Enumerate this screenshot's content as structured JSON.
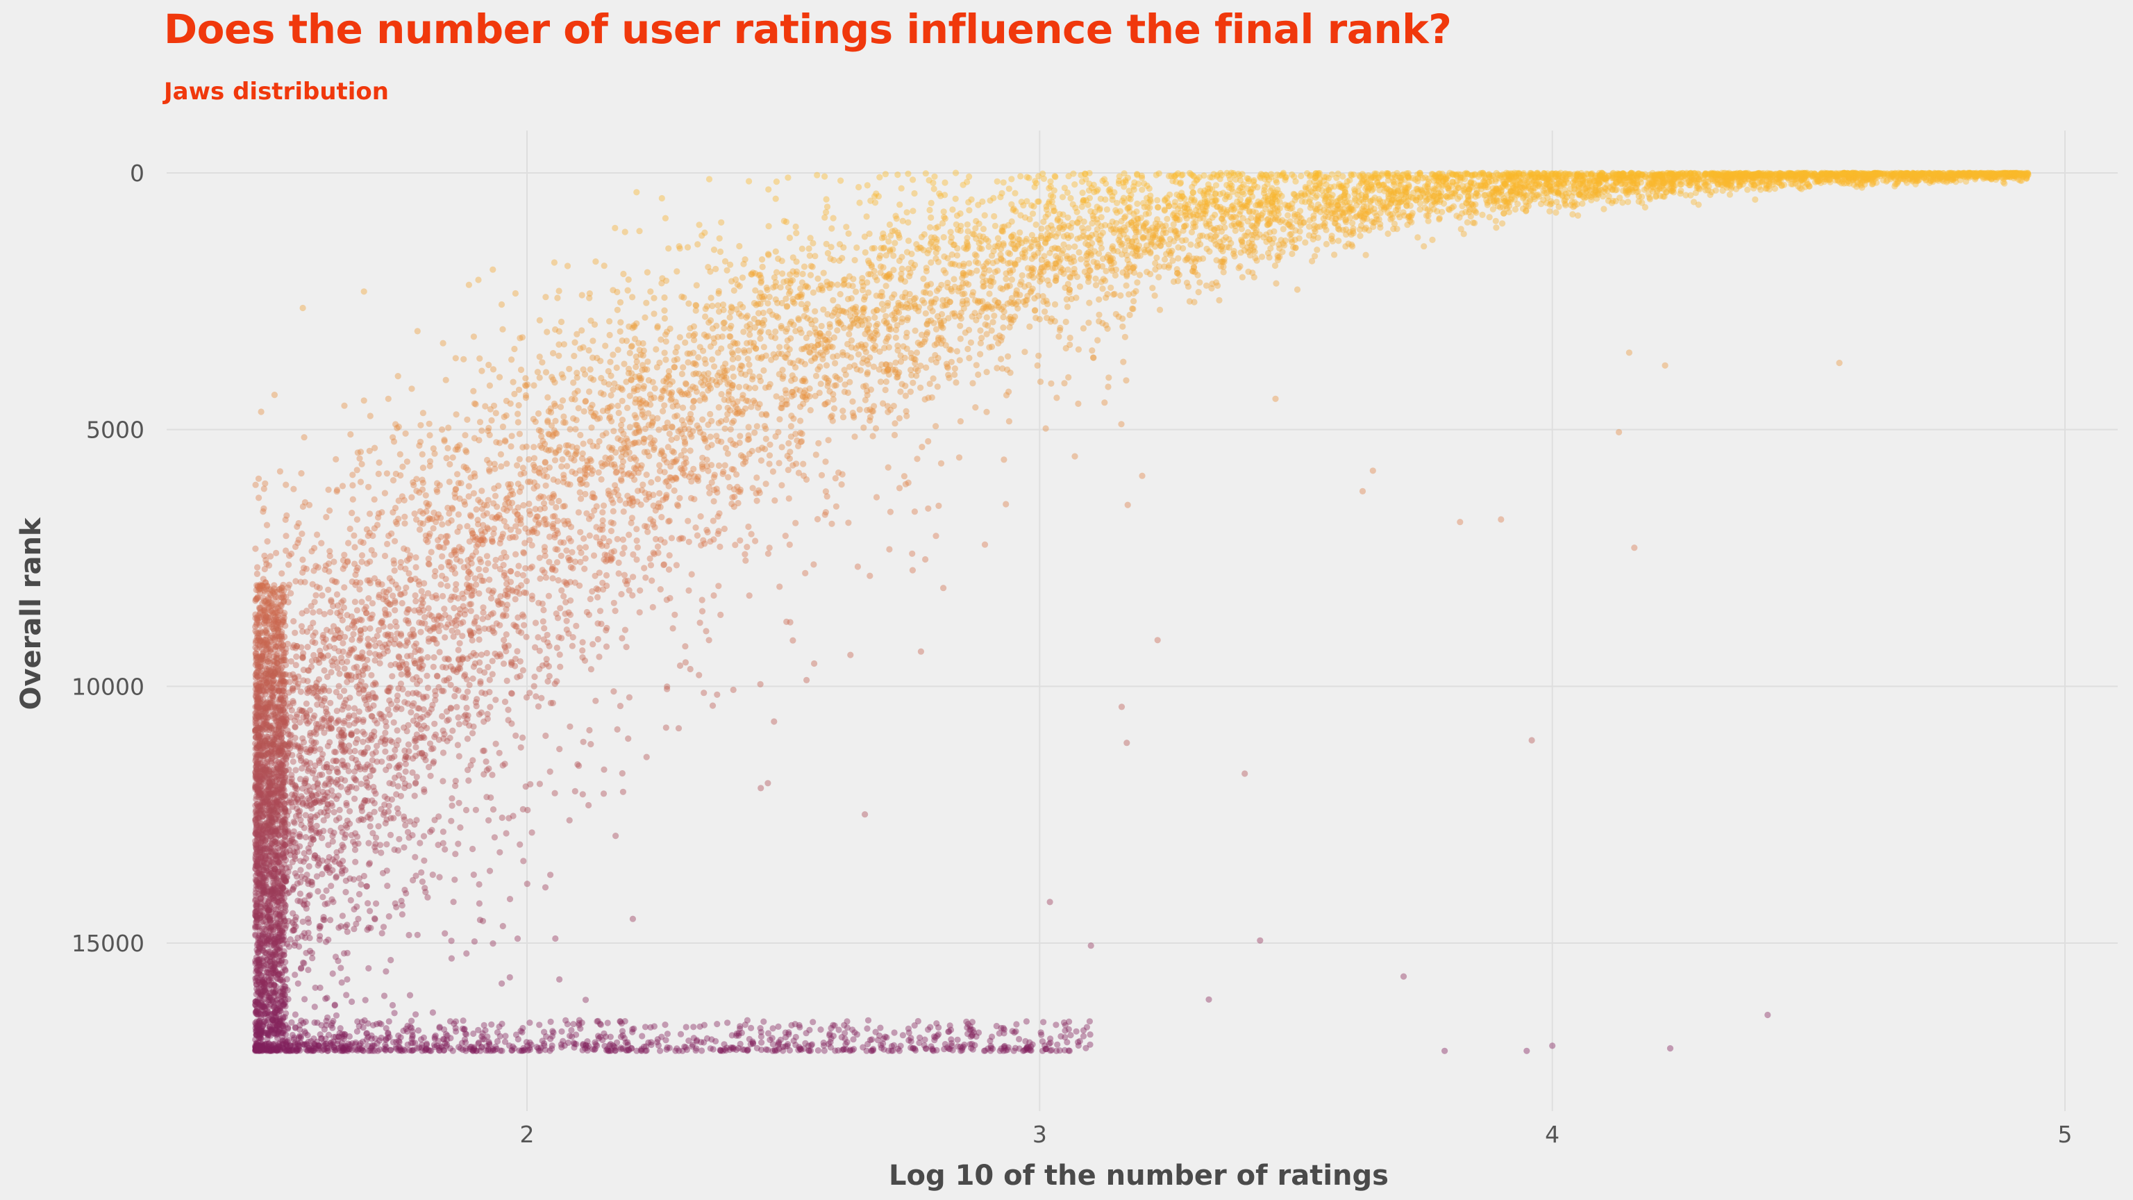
{
  "title": "Does the number of user ratings influence the final rank?",
  "subtitle": "Jaws distribution",
  "colors": {
    "title": "#f0380c",
    "background": "#efefef",
    "grid": "#dedede",
    "point_high_rank": "#fbb92c",
    "point_mid_rank": "#d9784e",
    "point_low_rank": "#7a1a5e"
  },
  "chart_data": {
    "type": "scatter",
    "title": "Does the number of user ratings influence the final rank?",
    "subtitle": "Jaws distribution",
    "xlabel": "Log 10 of the number of ratings",
    "ylabel": "Overall rank",
    "x_ticks": [
      "2",
      "3",
      "4",
      "5"
    ],
    "y_ticks": [
      "0",
      "5000",
      "10000",
      "15000"
    ],
    "xlim": [
      1.3,
      5.1
    ],
    "ylim": [
      0,
      17800
    ],
    "y_reversed": true,
    "grid": true,
    "legend": "none",
    "color_encoding": "overall rank (gold = best rank, purple = worst rank)",
    "n_points_approx": 17000,
    "x_min": 1.47,
    "x_max": 4.93,
    "y_max_rank": 17100,
    "band_summary": [
      {
        "x": 1.5,
        "rank_center": 12500,
        "rank_spread": 4600
      },
      {
        "x": 1.75,
        "rank_center": 9600,
        "rank_spread": 4200
      },
      {
        "x": 2.0,
        "rank_center": 6900,
        "rank_spread": 3600
      },
      {
        "x": 2.25,
        "rank_center": 4900,
        "rank_spread": 3000
      },
      {
        "x": 2.5,
        "rank_center": 3500,
        "rank_spread": 2500
      },
      {
        "x": 2.75,
        "rank_center": 2400,
        "rank_spread": 2000
      },
      {
        "x": 3.0,
        "rank_center": 1600,
        "rank_spread": 1600
      },
      {
        "x": 3.25,
        "rank_center": 1050,
        "rank_spread": 1200
      },
      {
        "x": 3.5,
        "rank_center": 650,
        "rank_spread": 900
      },
      {
        "x": 3.75,
        "rank_center": 380,
        "rank_spread": 650
      },
      {
        "x": 4.0,
        "rank_center": 200,
        "rank_spread": 450
      },
      {
        "x": 4.25,
        "rank_center": 100,
        "rank_spread": 300
      },
      {
        "x": 4.5,
        "rank_center": 50,
        "rank_spread": 200
      },
      {
        "x": 4.9,
        "rank_center": 20,
        "rank_spread": 100
      }
    ],
    "bottom_floor_rank": 17100,
    "outliers": [
      {
        "x": 3.96,
        "y": 11050
      },
      {
        "x": 4.15,
        "y": 3500
      },
      {
        "x": 4.13,
        "y": 5050
      },
      {
        "x": 4.16,
        "y": 7300
      },
      {
        "x": 4.22,
        "y": 3750
      },
      {
        "x": 4.42,
        "y": 16400
      },
      {
        "x": 4.56,
        "y": 3700
      },
      {
        "x": 3.4,
        "y": 11700
      },
      {
        "x": 3.43,
        "y": 14950
      },
      {
        "x": 3.71,
        "y": 15650
      },
      {
        "x": 3.23,
        "y": 9100
      },
      {
        "x": 3.16,
        "y": 10400
      },
      {
        "x": 3.17,
        "y": 11100
      },
      {
        "x": 3.82,
        "y": 6800
      },
      {
        "x": 3.9,
        "y": 6750
      },
      {
        "x": 3.63,
        "y": 6200
      },
      {
        "x": 3.65,
        "y": 5800
      },
      {
        "x": 3.1,
        "y": 15050
      },
      {
        "x": 3.2,
        "y": 5900
      },
      {
        "x": 3.33,
        "y": 16100
      },
      {
        "x": 3.46,
        "y": 4400
      },
      {
        "x": 3.02,
        "y": 14200
      },
      {
        "x": 3.05,
        "y": 16600
      },
      {
        "x": 4.23,
        "y": 17050
      },
      {
        "x": 4.0,
        "y": 17000
      },
      {
        "x": 3.95,
        "y": 17100
      },
      {
        "x": 3.79,
        "y": 17100
      }
    ]
  }
}
